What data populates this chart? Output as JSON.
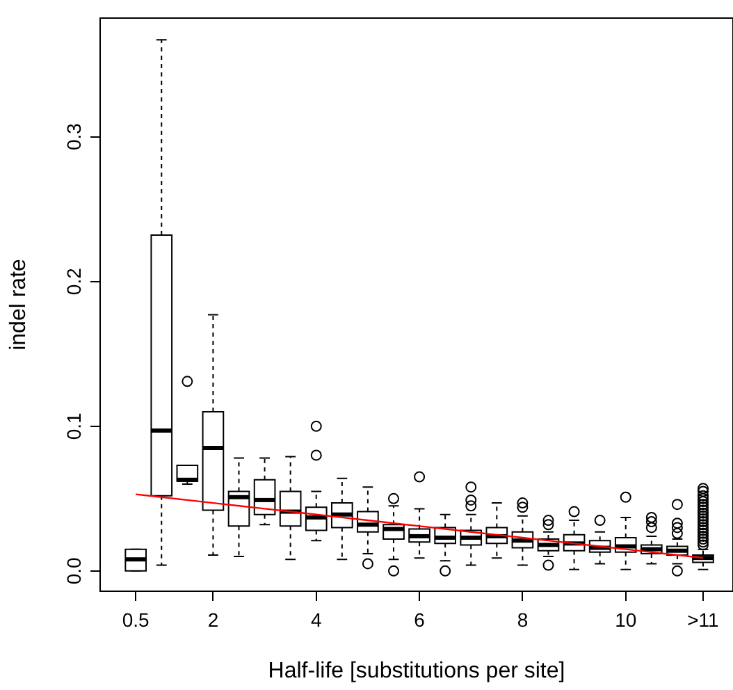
{
  "chart_data": {
    "type": "box",
    "xlabel": "Half-life [substitutions per site]",
    "ylabel": "indel rate",
    "categories": [
      "0.5",
      null,
      null,
      "2",
      null,
      null,
      null,
      "4",
      null,
      null,
      null,
      "6",
      null,
      null,
      null,
      "8",
      null,
      null,
      null,
      "10",
      null,
      null,
      ">11"
    ],
    "ylim": [
      -0.014,
      0.382
    ],
    "yticks": [
      {
        "value": 0,
        "label": "0.0"
      },
      0.1,
      0.2,
      0.3
    ],
    "grid": false,
    "legend": false,
    "boxes": [
      {
        "low": 0,
        "q1": 0,
        "median": 0.008,
        "q3": 0.015,
        "high": 0.015
      },
      {
        "low": 0.004,
        "q1": 0.052,
        "median": 0.097,
        "q3": 0.232,
        "high": 0.367
      },
      {
        "low": 0.06,
        "q1": 0.062,
        "median": 0.063,
        "q3": 0.073,
        "high": 0.073,
        "outliers": [
          0.131
        ]
      },
      {
        "low": 0.011,
        "q1": 0.042,
        "median": 0.085,
        "q3": 0.11,
        "high": 0.177
      },
      {
        "low": 0.01,
        "q1": 0.031,
        "median": 0.051,
        "q3": 0.055,
        "high": 0.078
      },
      {
        "low": 0.032,
        "q1": 0.039,
        "median": 0.049,
        "q3": 0.063,
        "high": 0.078
      },
      {
        "low": 0.008,
        "q1": 0.031,
        "median": 0.041,
        "q3": 0.055,
        "high": 0.079
      },
      {
        "low": 0.021,
        "q1": 0.028,
        "median": 0.037,
        "q3": 0.044,
        "high": 0.055,
        "outliers": [
          0.1,
          0.08
        ]
      },
      {
        "low": 0.008,
        "q1": 0.03,
        "median": 0.039,
        "q3": 0.047,
        "high": 0.064
      },
      {
        "low": 0.012,
        "q1": 0.027,
        "median": 0.032,
        "q3": 0.041,
        "high": 0.058,
        "outliers": [
          0.005
        ]
      },
      {
        "low": 0.008,
        "q1": 0.022,
        "median": 0.029,
        "q3": 0.032,
        "high": 0.045,
        "outliers": [
          0.05,
          0
        ]
      },
      {
        "low": 0.009,
        "q1": 0.02,
        "median": 0.024,
        "q3": 0.029,
        "high": 0.043,
        "outliers": [
          0.065
        ]
      },
      {
        "low": 0.007,
        "q1": 0.019,
        "median": 0.023,
        "q3": 0.03,
        "high": 0.039,
        "outliers": [
          0
        ]
      },
      {
        "low": 0.004,
        "q1": 0.018,
        "median": 0.023,
        "q3": 0.028,
        "high": 0.039,
        "outliers": [
          0.058,
          0.049,
          0.045
        ]
      },
      {
        "low": 0.009,
        "q1": 0.019,
        "median": 0.024,
        "q3": 0.03,
        "high": 0.047
      },
      {
        "low": 0.004,
        "q1": 0.016,
        "median": 0.021,
        "q3": 0.027,
        "high": 0.038,
        "outliers": [
          0.047,
          0.044
        ]
      },
      {
        "low": 0.01,
        "q1": 0.014,
        "median": 0.018,
        "q3": 0.022,
        "high": 0.027,
        "outliers": [
          0.035,
          0.032,
          0.004
        ]
      },
      {
        "low": 0.001,
        "q1": 0.014,
        "median": 0.019,
        "q3": 0.025,
        "high": 0.035,
        "outliers": [
          0.041
        ]
      },
      {
        "low": 0.005,
        "q1": 0.013,
        "median": 0.016,
        "q3": 0.021,
        "high": 0.027,
        "outliers": [
          0.035
        ]
      },
      {
        "low": 0.001,
        "q1": 0.013,
        "median": 0.017,
        "q3": 0.023,
        "high": 0.037,
        "outliers": [
          0.051
        ]
      },
      {
        "low": 0.005,
        "q1": 0.012,
        "median": 0.015,
        "q3": 0.018,
        "high": 0.024,
        "outliers": [
          0.037,
          0.034,
          0.03
        ]
      },
      {
        "low": 0.005,
        "q1": 0.011,
        "median": 0.014,
        "q3": 0.017,
        "high": 0.022,
        "outliers": [
          0.046,
          0.033,
          0.03,
          0.026,
          0
        ]
      },
      {
        "low": 0.001,
        "q1": 0.006,
        "median": 0.009,
        "q3": 0.011,
        "high": 0.015,
        "outliers": [
          0.057,
          0.055,
          0.052,
          0.05,
          0.048,
          0.046,
          0.044,
          0.042,
          0.04,
          0.038,
          0.036,
          0.034,
          0.032,
          0.03,
          0.028,
          0.026,
          0.024,
          0.022,
          0.02,
          0.018
        ]
      }
    ],
    "series": [
      {
        "type": "line",
        "color": "#ff0000",
        "values": [
          0.053,
          0.051,
          0.049,
          0.047,
          0.045,
          0.043,
          0.041,
          0.039,
          0.037,
          0.035,
          0.033,
          0.031,
          0.029,
          0.027,
          0.025,
          0.023,
          0.021,
          0.019,
          0.017,
          0.015,
          0.013,
          0.011,
          0.009
        ]
      }
    ]
  }
}
